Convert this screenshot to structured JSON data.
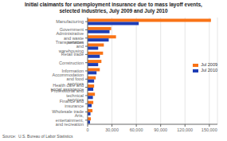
{
  "chart_data": {
    "type": "bar",
    "orientation": "horizontal",
    "title": "Initial claimants for unemployment insurance due to mass layoff events,\nselected industries, July 2009 and July 2010",
    "annotations": [
      "Source:  U.S. Bureau of Labor Statistics"
    ],
    "categories": [
      "Manufacturing",
      "Government",
      "Administrative and waste services",
      "Transportation and warehousing",
      "Retail trade",
      "Construction",
      "Information",
      "Accommodation and food services",
      "Health care and social assistance",
      "Professional and technical services",
      "Finance and insurance",
      "Wholesale trade",
      "Arts, entertainment, and recreation"
    ],
    "series": [
      {
        "name": "Jul 2009",
        "color": "#F97316",
        "values": [
          152000,
          29000,
          35000,
          20000,
          19000,
          17000,
          15000,
          10000,
          8000,
          9000,
          7000,
          6000,
          4000
        ]
      },
      {
        "name": "Jul 2010",
        "color": "#1E3DB5",
        "values": [
          63000,
          27000,
          26000,
          13000,
          15000,
          13000,
          11000,
          8000,
          7000,
          6500,
          5000,
          3500,
          3000
        ]
      }
    ],
    "xlim": [
      0,
      160000
    ],
    "xticks": [
      0,
      {
        "value": 30000,
        "label": "30,000"
      },
      {
        "value": 60000,
        "label": "60,000"
      },
      {
        "value": 90000,
        "label": "90,000"
      },
      {
        "value": 120000,
        "label": "120,000"
      },
      {
        "value": 150000,
        "label": "150,000"
      }
    ],
    "grid": true,
    "legend": "right"
  }
}
